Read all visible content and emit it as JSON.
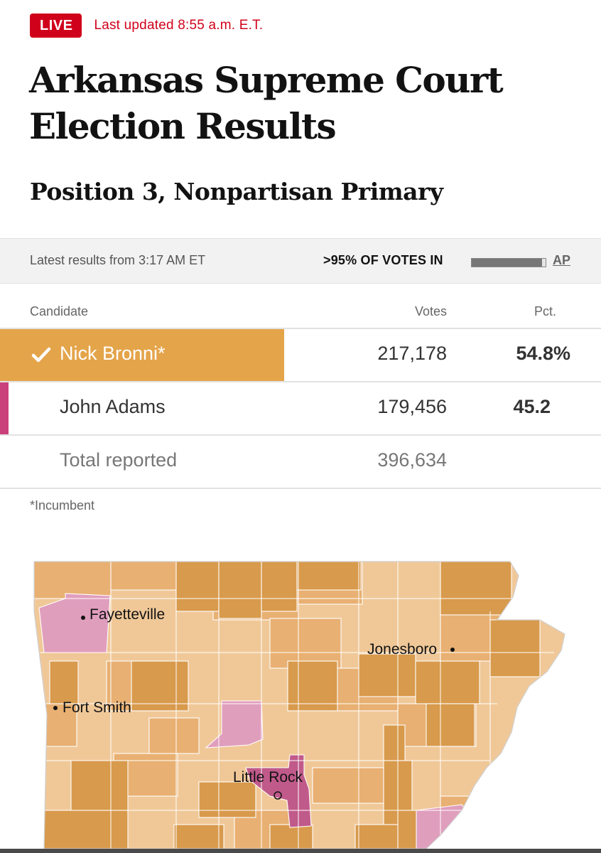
{
  "header": {
    "live_badge": "LIVE",
    "last_updated": "Last updated 8:55 a.m. E.T.",
    "title_line1": "Arkansas Supreme Court",
    "title_line2": "Election Results",
    "subtitle": "Position 3, Nonpartisan Primary"
  },
  "status": {
    "latest": "Latest results from 3:17 AM ET",
    "votes_in": ">95% OF VOTES IN",
    "votes_in_fraction": 0.95,
    "source": "AP"
  },
  "table": {
    "columns": [
      "Candidate",
      "Votes",
      "Pct."
    ],
    "rows": [
      {
        "candidate": "Nick Bronni*",
        "votes": "217,178",
        "pct": "54.8%",
        "winner": true,
        "color": "#e4a44a"
      },
      {
        "candidate": "John Adams",
        "votes": "179,456",
        "pct": "45.2",
        "winner": false,
        "color": "#c9407a"
      }
    ],
    "total_label": "Total reported",
    "total_votes": "396,634"
  },
  "footnote": "*Incumbent",
  "map": {
    "cities": [
      "Fayetteville",
      "Jonesboro",
      "Fort Smith",
      "Little Rock"
    ],
    "colors": {
      "bronni_light": "#f0c898",
      "bronni_medium": "#e8b072",
      "bronni_dark": "#d89a4c",
      "adams_light": "#e09ebd",
      "adams_dark": "#c05a8a"
    }
  },
  "icons": {
    "winner_check": "check-icon"
  }
}
